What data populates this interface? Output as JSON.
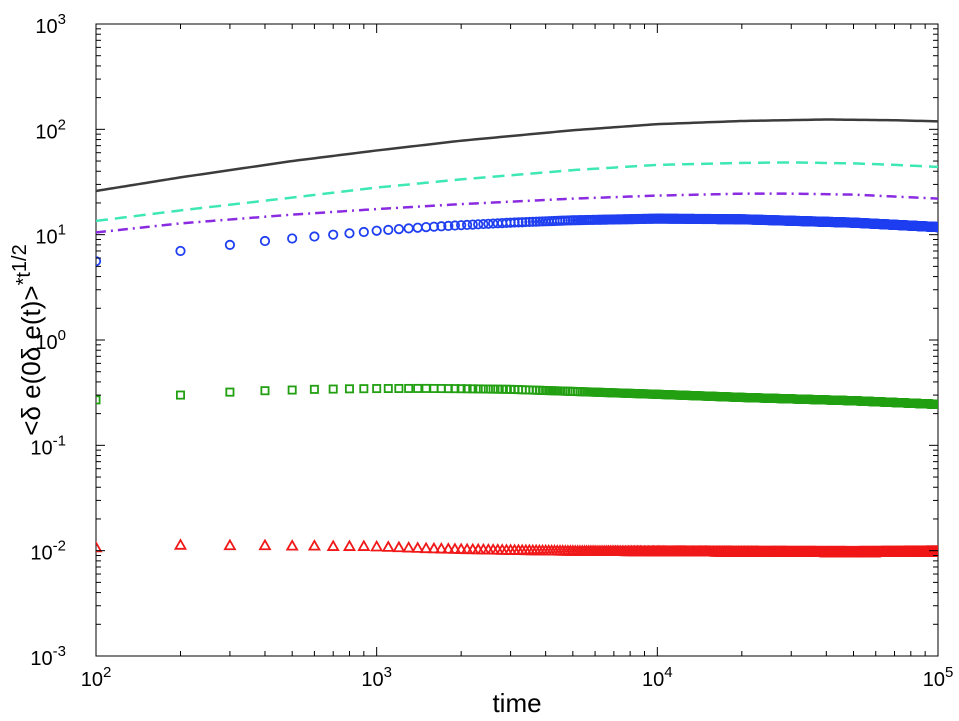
{
  "chart_data": {
    "type": "scatter",
    "title": "",
    "xlabel": "time",
    "ylabel_main": "<δ e(0δ e(t)>",
    "ylabel_super": "*t",
    "ylabel_exponent": "1/2",
    "x_scale": "log",
    "y_scale": "log",
    "xlim": [
      100,
      100000
    ],
    "ylim": [
      0.001,
      1000
    ],
    "x_ticks": [
      {
        "base": "10",
        "exp": "2",
        "value": 100
      },
      {
        "base": "10",
        "exp": "3",
        "value": 1000
      },
      {
        "base": "10",
        "exp": "4",
        "value": 10000
      },
      {
        "base": "10",
        "exp": "5",
        "value": 100000
      }
    ],
    "y_ticks": [
      {
        "base": "10",
        "exp": "-3",
        "value": 0.001
      },
      {
        "base": "10",
        "exp": "-2",
        "value": 0.01
      },
      {
        "base": "10",
        "exp": "-1",
        "value": 0.1
      },
      {
        "base": "10",
        "exp": "0",
        "value": 1
      },
      {
        "base": "10",
        "exp": "1",
        "value": 10
      },
      {
        "base": "10",
        "exp": "2",
        "value": 100
      },
      {
        "base": "10",
        "exp": "3",
        "value": 1000
      }
    ],
    "grid": false,
    "legend": "none",
    "series": [
      {
        "style": "solid-line",
        "color": "#3c3c3c",
        "x": [
          100,
          200,
          500,
          1000,
          2000,
          5000,
          10000,
          20000,
          40000,
          70000,
          100000
        ],
        "y": [
          26,
          35,
          50,
          63,
          78,
          98,
          112,
          120,
          124,
          122,
          119
        ]
      },
      {
        "style": "dashed-line",
        "color": "#3ee8b5",
        "x": [
          100,
          200,
          500,
          1000,
          2000,
          5000,
          10000,
          20000,
          30000,
          50000,
          70000,
          100000
        ],
        "y": [
          13.5,
          17,
          22.5,
          28,
          33.5,
          41,
          46,
          48,
          48.5,
          47.5,
          46,
          44
        ]
      },
      {
        "style": "dashdot-line",
        "color": "#8a2be2",
        "x": [
          100,
          200,
          500,
          1000,
          2000,
          5000,
          10000,
          20000,
          30000,
          50000,
          70000,
          100000
        ],
        "y": [
          10.5,
          12.8,
          15.5,
          17.5,
          19.5,
          22,
          23.5,
          24.5,
          24.5,
          24,
          23,
          22
        ]
      },
      {
        "style": "circle-markers",
        "color": "#1f3ff0",
        "x": [
          100,
          200,
          300,
          400,
          500,
          600,
          700,
          800,
          900,
          1000,
          1500,
          2000,
          3000,
          5000,
          10000,
          20000,
          50000,
          100000
        ],
        "y": [
          5.6,
          7.0,
          8.0,
          8.7,
          9.2,
          9.6,
          10.0,
          10.3,
          10.6,
          10.9,
          11.8,
          12.3,
          13.0,
          13.7,
          14.2,
          14.0,
          13.0,
          11.8
        ]
      },
      {
        "style": "square-markers",
        "color": "#22a012",
        "x": [
          100,
          200,
          300,
          400,
          500,
          600,
          700,
          800,
          900,
          1000,
          1500,
          2000,
          3000,
          5000,
          10000,
          20000,
          50000,
          100000
        ],
        "y": [
          0.27,
          0.3,
          0.32,
          0.33,
          0.335,
          0.34,
          0.342,
          0.344,
          0.345,
          0.346,
          0.347,
          0.345,
          0.34,
          0.325,
          0.305,
          0.285,
          0.265,
          0.245
        ]
      },
      {
        "style": "triangle-markers",
        "color": "#f01818",
        "x": [
          100,
          200,
          300,
          400,
          500,
          600,
          700,
          800,
          900,
          1000,
          1500,
          2000,
          3000,
          5000,
          10000,
          20000,
          50000,
          100000
        ],
        "y": [
          0.0107,
          0.0113,
          0.0112,
          0.0112,
          0.0111,
          0.0111,
          0.011,
          0.011,
          0.011,
          0.0109,
          0.0105,
          0.0103,
          0.0101,
          0.0099,
          0.0098,
          0.0097,
          0.0096,
          0.0097
        ]
      }
    ]
  }
}
